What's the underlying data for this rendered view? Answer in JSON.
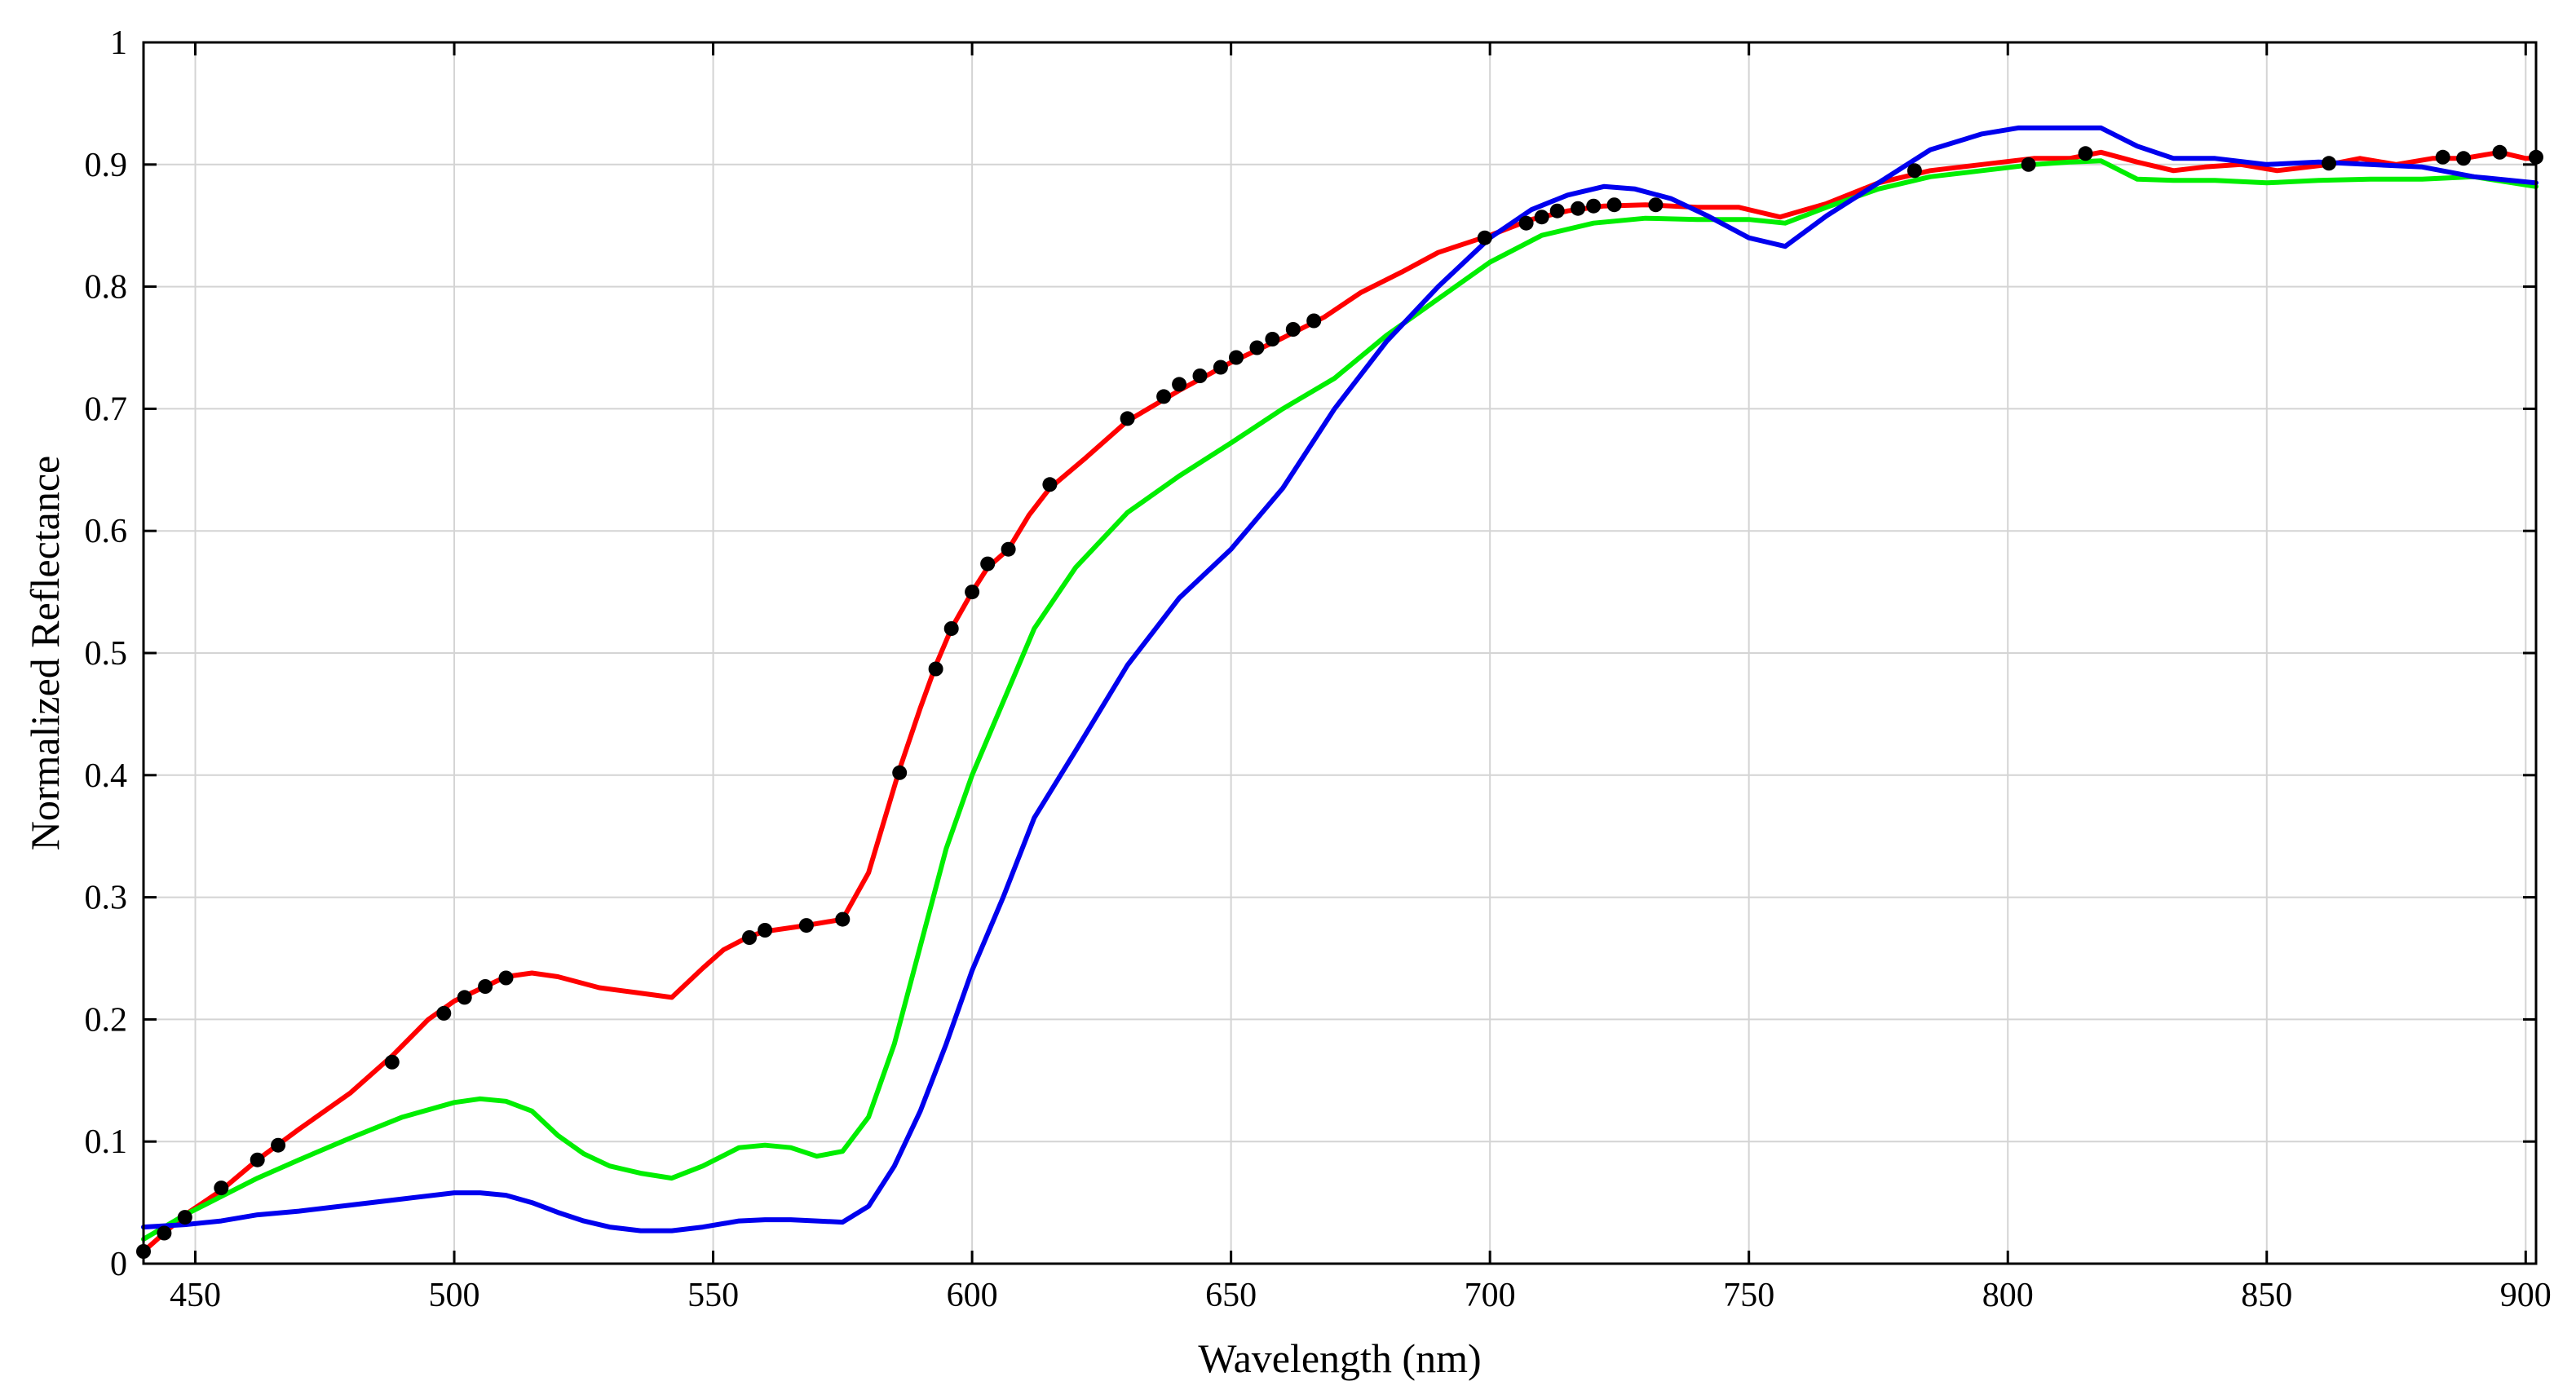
{
  "chart_data": {
    "type": "line",
    "title": "",
    "xlabel": "Wavelength (nm)",
    "ylabel": "Normalized Reflectance",
    "xlim": [
      440,
      902
    ],
    "ylim": [
      0,
      1
    ],
    "grid": true,
    "legend": "none",
    "x_ticks": [
      450,
      500,
      550,
      600,
      650,
      700,
      750,
      800,
      850,
      900
    ],
    "y_ticks": [
      0,
      0.1,
      0.2,
      0.3,
      0.4,
      0.5,
      0.6,
      0.7,
      0.8,
      0.9,
      1
    ],
    "x_tick_labels": [
      "450",
      "500",
      "550",
      "600",
      "650",
      "700",
      "750",
      "800",
      "850",
      "900"
    ],
    "y_tick_labels": [
      "0",
      "0.1",
      "0.2",
      "0.3",
      "0.4",
      "0.5",
      "0.6",
      "0.7",
      "0.8",
      "0.9",
      "1"
    ],
    "series": [
      {
        "color": "#ff0000",
        "x": [
          440,
          444,
          448,
          455,
          462,
          470,
          480,
          488,
          495,
          500,
          505,
          510,
          515,
          520,
          528,
          535,
          542,
          548,
          552,
          557,
          560,
          568,
          575,
          580,
          586,
          590,
          593,
          596,
          600,
          603,
          607,
          611,
          615,
          622,
          630,
          640,
          650,
          660,
          668,
          675,
          683,
          690,
          695,
          700,
          708,
          715,
          722,
          730,
          740,
          748,
          756,
          765,
          775,
          785,
          795,
          805,
          812,
          818,
          825,
          832,
          838,
          845,
          852,
          858,
          862,
          868,
          875,
          882,
          888,
          895,
          900,
          902
        ],
        "y": [
          0.01,
          0.025,
          0.04,
          0.06,
          0.085,
          0.11,
          0.14,
          0.17,
          0.2,
          0.215,
          0.225,
          0.235,
          0.238,
          0.235,
          0.226,
          0.222,
          0.218,
          0.242,
          0.257,
          0.268,
          0.272,
          0.277,
          0.282,
          0.32,
          0.405,
          0.455,
          0.49,
          0.52,
          0.55,
          0.57,
          0.585,
          0.613,
          0.635,
          0.66,
          0.69,
          0.715,
          0.738,
          0.758,
          0.775,
          0.795,
          0.812,
          0.828,
          0.835,
          0.842,
          0.855,
          0.862,
          0.866,
          0.867,
          0.865,
          0.865,
          0.857,
          0.868,
          0.885,
          0.895,
          0.9,
          0.905,
          0.905,
          0.91,
          0.902,
          0.895,
          0.898,
          0.9,
          0.895,
          0.898,
          0.9,
          0.905,
          0.9,
          0.905,
          0.905,
          0.91,
          0.905,
          0.905
        ]
      },
      {
        "color": "#00ee00",
        "x": [
          440,
          448,
          455,
          462,
          470,
          480,
          490,
          500,
          505,
          510,
          515,
          520,
          525,
          530,
          536,
          542,
          548,
          555,
          560,
          565,
          570,
          575,
          580,
          585,
          590,
          595,
          600,
          606,
          612,
          620,
          630,
          640,
          650,
          660,
          670,
          680,
          690,
          700,
          710,
          720,
          730,
          740,
          750,
          757,
          765,
          775,
          785,
          795,
          805,
          812,
          818,
          825,
          832,
          840,
          850,
          860,
          870,
          880,
          890,
          902
        ],
        "y": [
          0.02,
          0.04,
          0.055,
          0.07,
          0.085,
          0.103,
          0.12,
          0.132,
          0.135,
          0.133,
          0.125,
          0.105,
          0.09,
          0.08,
          0.074,
          0.07,
          0.08,
          0.095,
          0.097,
          0.095,
          0.088,
          0.092,
          0.12,
          0.18,
          0.26,
          0.34,
          0.4,
          0.46,
          0.52,
          0.57,
          0.615,
          0.645,
          0.672,
          0.7,
          0.725,
          0.76,
          0.79,
          0.82,
          0.842,
          0.852,
          0.856,
          0.855,
          0.855,
          0.852,
          0.865,
          0.88,
          0.89,
          0.895,
          0.9,
          0.902,
          0.903,
          0.888,
          0.887,
          0.887,
          0.885,
          0.887,
          0.888,
          0.888,
          0.89,
          0.882
        ]
      },
      {
        "color": "#0000ee",
        "x": [
          440,
          448,
          455,
          462,
          470,
          480,
          490,
          500,
          505,
          510,
          515,
          520,
          525,
          530,
          536,
          542,
          548,
          555,
          560,
          565,
          570,
          575,
          580,
          585,
          590,
          595,
          600,
          606,
          612,
          620,
          630,
          640,
          650,
          660,
          670,
          680,
          690,
          700,
          708,
          715,
          722,
          728,
          735,
          742,
          750,
          757,
          765,
          775,
          785,
          795,
          802,
          810,
          818,
          825,
          832,
          840,
          850,
          860,
          870,
          880,
          890,
          902
        ],
        "y": [
          0.03,
          0.032,
          0.035,
          0.04,
          0.043,
          0.048,
          0.053,
          0.058,
          0.058,
          0.056,
          0.05,
          0.042,
          0.035,
          0.03,
          0.027,
          0.027,
          0.03,
          0.035,
          0.036,
          0.036,
          0.035,
          0.034,
          0.047,
          0.08,
          0.125,
          0.18,
          0.24,
          0.3,
          0.365,
          0.42,
          0.49,
          0.545,
          0.585,
          0.635,
          0.7,
          0.755,
          0.8,
          0.84,
          0.863,
          0.875,
          0.882,
          0.88,
          0.872,
          0.858,
          0.84,
          0.833,
          0.858,
          0.885,
          0.912,
          0.925,
          0.93,
          0.93,
          0.93,
          0.915,
          0.905,
          0.905,
          0.9,
          0.902,
          0.9,
          0.898,
          0.89,
          0.885
        ]
      }
    ],
    "markers": {
      "color": "#000000",
      "points": [
        [
          440,
          0.01
        ],
        [
          444,
          0.025
        ],
        [
          448,
          0.038
        ],
        [
          455,
          0.062
        ],
        [
          462,
          0.085
        ],
        [
          466,
          0.097
        ],
        [
          488,
          0.165
        ],
        [
          498,
          0.205
        ],
        [
          502,
          0.218
        ],
        [
          506,
          0.227
        ],
        [
          510,
          0.234
        ],
        [
          557,
          0.267
        ],
        [
          560,
          0.273
        ],
        [
          568,
          0.277
        ],
        [
          575,
          0.282
        ],
        [
          586,
          0.402
        ],
        [
          593,
          0.487
        ],
        [
          596,
          0.52
        ],
        [
          600,
          0.55
        ],
        [
          603,
          0.573
        ],
        [
          607,
          0.585
        ],
        [
          615,
          0.638
        ],
        [
          630,
          0.692
        ],
        [
          637,
          0.71
        ],
        [
          640,
          0.72
        ],
        [
          644,
          0.727
        ],
        [
          648,
          0.734
        ],
        [
          651,
          0.742
        ],
        [
          655,
          0.75
        ],
        [
          658,
          0.757
        ],
        [
          662,
          0.765
        ],
        [
          666,
          0.772
        ],
        [
          699,
          0.84
        ],
        [
          707,
          0.852
        ],
        [
          710,
          0.857
        ],
        [
          713,
          0.862
        ],
        [
          717,
          0.864
        ],
        [
          720,
          0.866
        ],
        [
          724,
          0.867
        ],
        [
          732,
          0.867
        ],
        [
          782,
          0.895
        ],
        [
          804,
          0.9
        ],
        [
          815,
          0.909
        ],
        [
          862,
          0.901
        ],
        [
          884,
          0.906
        ],
        [
          888,
          0.905
        ],
        [
          895,
          0.91
        ],
        [
          902,
          0.906
        ]
      ]
    }
  }
}
